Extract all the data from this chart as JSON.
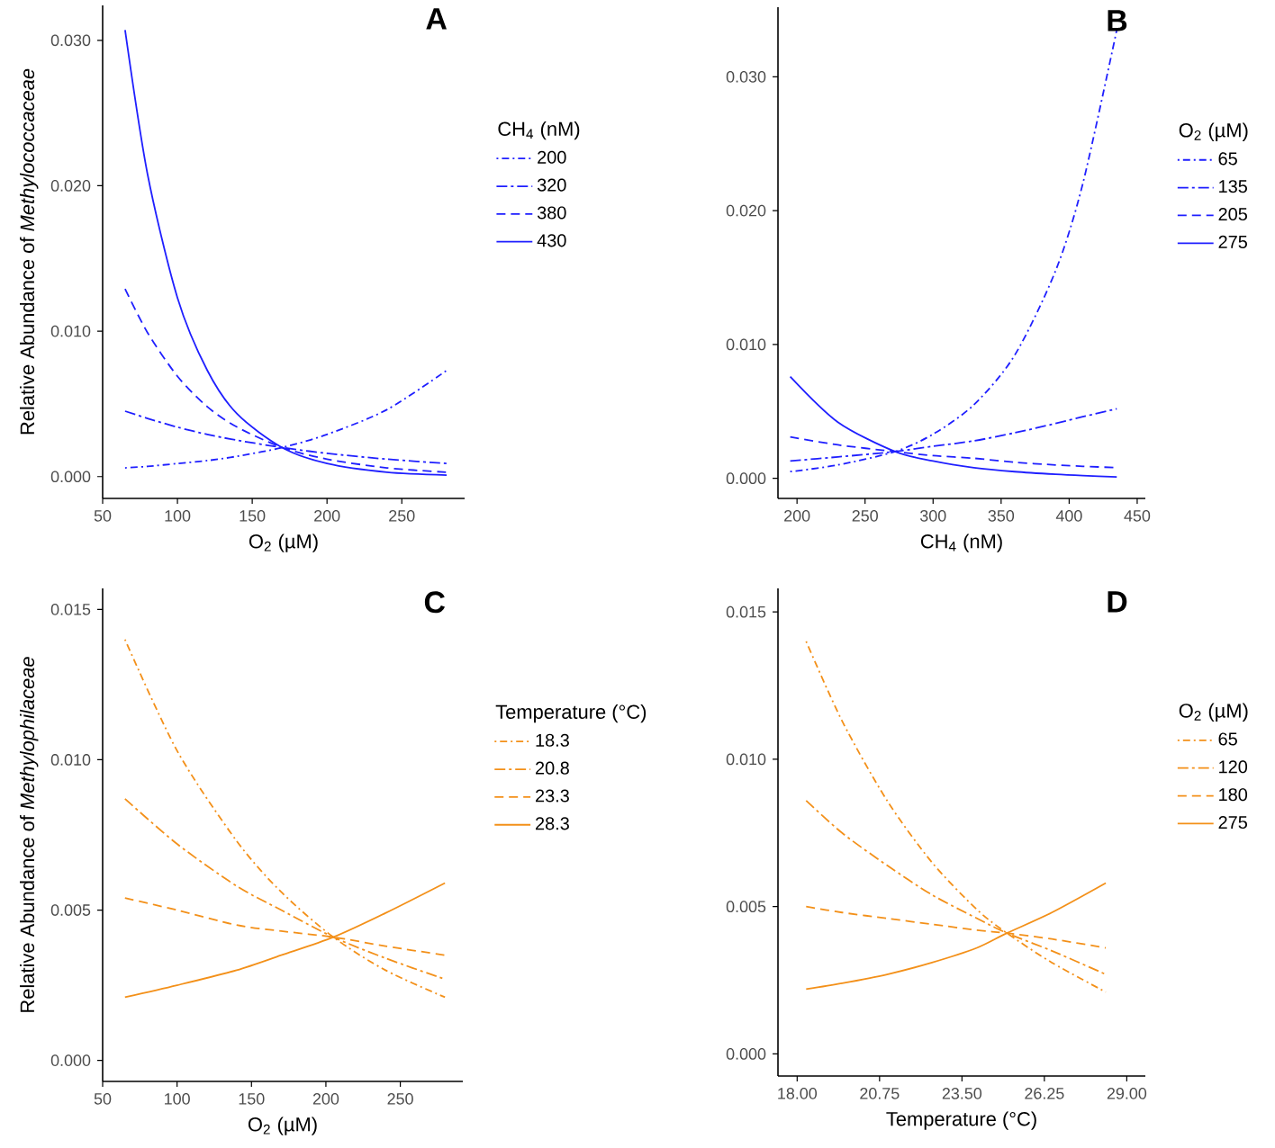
{
  "chart_data": [
    {
      "type": "line",
      "title": "A",
      "xlabel": "O$_{2}$ (µM)",
      "ylabel": "Relative Abundance of *Methylococcaceae*",
      "legend_title": "CH$_{4}$ (nM)",
      "legend": "right",
      "xlim": [
        50,
        292
      ],
      "ylim": [
        -0.0015,
        0.0324
      ],
      "xticks": [
        50,
        100,
        150,
        200,
        250
      ],
      "yticks": [
        {
          "value": 0,
          "label": "0.000"
        },
        {
          "value": 0.01,
          "label": "0.010"
        },
        {
          "value": 0.02,
          "label": "0.020"
        },
        {
          "value": 0.03,
          "label": "0.030"
        }
      ],
      "x": [
        65,
        80,
        100,
        120,
        140,
        170,
        200,
        240,
        280
      ],
      "series": [
        {
          "name": "200",
          "color": "#1f1fff",
          "line_style": "dotdash",
          "values": [
            0.0006,
            0.0007,
            0.0009,
            0.0011,
            0.0014,
            0.002,
            0.0029,
            0.0046,
            0.0073
          ]
        },
        {
          "name": "320",
          "color": "#1f1fff",
          "line_style": "longdashdot",
          "values": [
            0.0045,
            0.004,
            0.0034,
            0.0029,
            0.0025,
            0.002,
            0.0016,
            0.0012,
            0.0009
          ]
        },
        {
          "name": "380",
          "color": "#1f1fff",
          "line_style": "dashed",
          "values": [
            0.0129,
            0.0099,
            0.0069,
            0.0048,
            0.0034,
            0.002,
            0.0012,
            0.0006,
            0.0003
          ]
        },
        {
          "name": "430",
          "color": "#1f1fff",
          "line_style": "solid",
          "values": [
            0.0307,
            0.0208,
            0.0123,
            0.0073,
            0.0043,
            0.002,
            0.0009,
            0.0003,
            0.0001
          ]
        }
      ]
    },
    {
      "type": "line",
      "title": "B",
      "xlabel": "CH$_{4}$ (nM)",
      "legend_title": "O$_{2}$ (µM)",
      "legend": "right",
      "xlim": [
        186,
        456
      ],
      "ylim": [
        -0.0015,
        0.0352
      ],
      "xticks": [
        200,
        250,
        300,
        350,
        400,
        450
      ],
      "yticks": [
        {
          "value": 0,
          "label": "0.000"
        },
        {
          "value": 0.01,
          "label": "0.010"
        },
        {
          "value": 0.02,
          "label": "0.020"
        },
        {
          "value": 0.03,
          "label": "0.030"
        }
      ],
      "x": [
        195,
        230,
        272,
        300,
        330,
        360,
        390,
        410,
        435
      ],
      "series": [
        {
          "name": "65",
          "color": "#1f1fff",
          "line_style": "dotdash",
          "values": [
            0.0005,
            0.001,
            0.002,
            0.0033,
            0.0055,
            0.0092,
            0.0155,
            0.022,
            0.0335
          ]
        },
        {
          "name": "135",
          "color": "#1f1fff",
          "line_style": "longdashdot",
          "values": [
            0.0013,
            0.0016,
            0.002,
            0.0024,
            0.0028,
            0.0034,
            0.0041,
            0.0046,
            0.0052
          ]
        },
        {
          "name": "205",
          "color": "#1f1fff",
          "line_style": "dashed",
          "values": [
            0.0031,
            0.0025,
            0.002,
            0.0017,
            0.0015,
            0.0012,
            0.001,
            0.0009,
            0.0008
          ]
        },
        {
          "name": "275",
          "color": "#1f1fff",
          "line_style": "solid",
          "values": [
            0.0076,
            0.0042,
            0.002,
            0.0013,
            0.0008,
            0.0005,
            0.0003,
            0.0002,
            0.0001
          ]
        }
      ]
    },
    {
      "type": "line",
      "title": "C",
      "xlabel": "O$_{2}$ (µM)",
      "ylabel": "Relative Abundance of *Methylophilaceae*",
      "legend_title": "Temperature  (°C)",
      "legend": "right",
      "xlim": [
        50,
        292
      ],
      "ylim": [
        -0.0007,
        0.0157
      ],
      "xticks": [
        50,
        100,
        150,
        200,
        250
      ],
      "yticks": [
        {
          "value": 0,
          "label": "0.000"
        },
        {
          "value": 0.005,
          "label": "0.005"
        },
        {
          "value": 0.01,
          "label": "0.010"
        },
        {
          "value": 0.015,
          "label": "0.015"
        }
      ],
      "x": [
        65,
        100,
        140,
        170,
        205,
        240,
        280
      ],
      "series": [
        {
          "name": "18.3",
          "color": "#f39019",
          "line_style": "dotdash",
          "values": [
            0.014,
            0.0103,
            0.0073,
            0.0056,
            0.0041,
            0.003,
            0.0021
          ]
        },
        {
          "name": "20.8",
          "color": "#f39019",
          "line_style": "longdashdot",
          "values": [
            0.0087,
            0.0072,
            0.0058,
            0.005,
            0.0041,
            0.0034,
            0.0027
          ]
        },
        {
          "name": "23.3",
          "color": "#f39019",
          "line_style": "dashed",
          "values": [
            0.0054,
            0.005,
            0.0045,
            0.0043,
            0.0041,
            0.0038,
            0.0035
          ]
        },
        {
          "name": "28.3",
          "color": "#f39019",
          "line_style": "solid",
          "values": [
            0.0021,
            0.0025,
            0.003,
            0.0035,
            0.0041,
            0.0049,
            0.0059
          ]
        }
      ]
    },
    {
      "type": "line",
      "title": "D",
      "xlabel": "Temperature  (°C)",
      "legend_title": "O$_{2}$ (µM)",
      "legend": "right",
      "xlim": [
        17.36,
        29.62
      ],
      "ylim": [
        -0.00075,
        0.0158
      ],
      "xticks": [
        {
          "value": 18,
          "label": "18.00"
        },
        {
          "value": 20.75,
          "label": "20.75"
        },
        {
          "value": 23.5,
          "label": "23.50"
        },
        {
          "value": 26.25,
          "label": "26.25"
        },
        {
          "value": 29,
          "label": "29.00"
        }
      ],
      "yticks": [
        {
          "value": 0,
          "label": "0.000"
        },
        {
          "value": 0.005,
          "label": "0.005"
        },
        {
          "value": 0.01,
          "label": "0.010"
        },
        {
          "value": 0.015,
          "label": "0.015"
        }
      ],
      "x": [
        18.3,
        19.5,
        21,
        22.5,
        24,
        25,
        26.5,
        28.3
      ],
      "series": [
        {
          "name": "65",
          "color": "#f39019",
          "line_style": "dotdash",
          "values": [
            0.014,
            0.0113,
            0.0086,
            0.0065,
            0.0049,
            0.0041,
            0.0031,
            0.0021
          ]
        },
        {
          "name": "120",
          "color": "#f39019",
          "line_style": "longdashdot",
          "values": [
            0.0086,
            0.0075,
            0.0064,
            0.0054,
            0.0046,
            0.0041,
            0.0035,
            0.0027
          ]
        },
        {
          "name": "180",
          "color": "#f39019",
          "line_style": "dashed",
          "values": [
            0.005,
            0.0048,
            0.0046,
            0.0044,
            0.0042,
            0.0041,
            0.0039,
            0.0036
          ]
        },
        {
          "name": "275",
          "color": "#f39019",
          "line_style": "solid",
          "values": [
            0.0022,
            0.0024,
            0.0027,
            0.0031,
            0.0036,
            0.0041,
            0.0048,
            0.0058
          ]
        }
      ]
    }
  ]
}
